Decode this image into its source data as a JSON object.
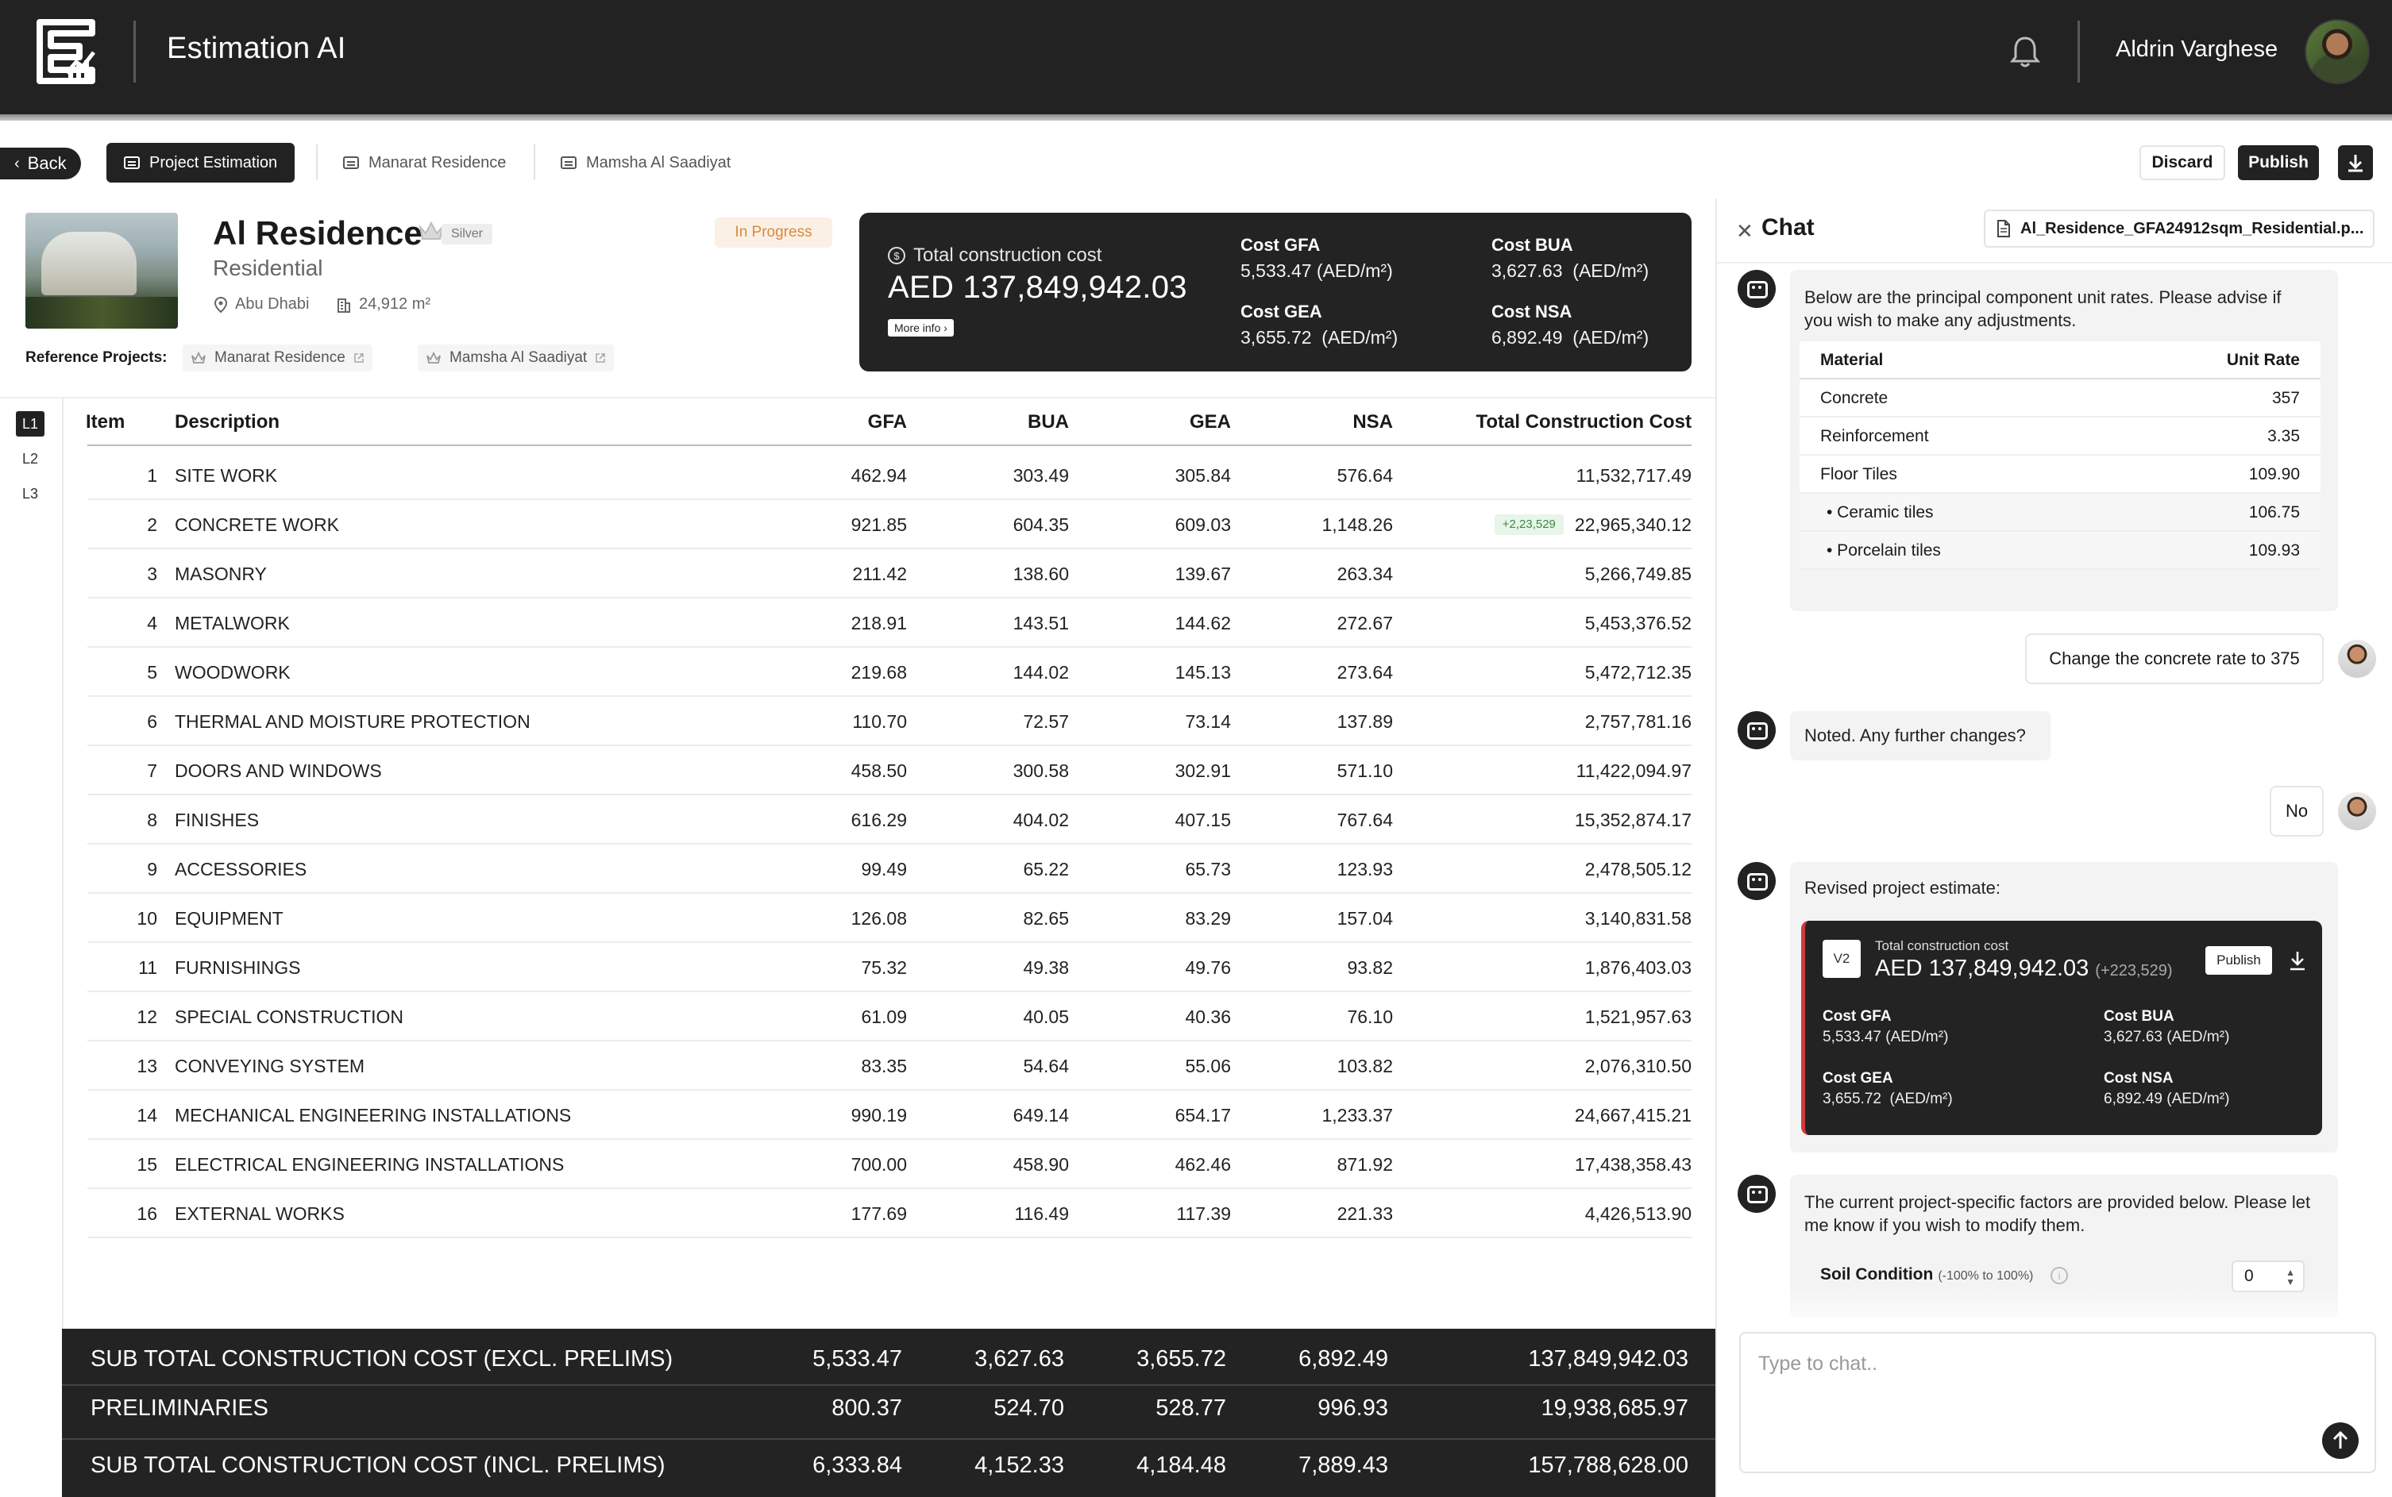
{
  "app": {
    "title": "Estimation AI",
    "user_name": "Aldrin Varghese"
  },
  "toolbar": {
    "back_label": "Back",
    "tabs": [
      {
        "label": "Project Estimation",
        "active": true
      },
      {
        "label": "Manarat Residence",
        "active": false
      },
      {
        "label": "Mamsha Al Saadiyat",
        "active": false
      }
    ],
    "discard_label": "Discard",
    "publish_label": "Publish"
  },
  "project": {
    "name": "Al Residence",
    "tier": "Silver",
    "type": "Residential",
    "location": "Abu Dhabi",
    "area": "24,912 m²",
    "status": "In Progress",
    "reference_label": "Reference Projects:",
    "references": [
      "Manarat Residence",
      "Mamsha Al Saadiyat"
    ]
  },
  "cost_summary": {
    "label": "Total construction cost",
    "total": "AED 137,849,942.03",
    "more_info": "More info ›",
    "gfa_label": "Cost GFA",
    "gfa_value": "5,533.47 (AED/m²)",
    "bua_label": "Cost BUA",
    "bua_value": "3,627.63  (AED/m²)",
    "gea_label": "Cost GEA",
    "gea_value": "3,655.72  (AED/m²)",
    "nsa_label": "Cost NSA",
    "nsa_value": "6,892.49  (AED/m²)"
  },
  "levels": [
    "L1",
    "L2",
    "L3"
  ],
  "table": {
    "headers": {
      "item": "Item",
      "description": "Description",
      "gfa": "GFA",
      "bua": "BUA",
      "gea": "GEA",
      "nsa": "NSA",
      "total": "Total Construction Cost"
    },
    "rows": [
      {
        "item": "1",
        "description": "SITE WORK",
        "gfa": "462.94",
        "bua": "303.49",
        "gea": "305.84",
        "nsa": "576.64",
        "total": "11,532,717.49",
        "delta": ""
      },
      {
        "item": "2",
        "description": "CONCRETE WORK",
        "gfa": "921.85",
        "bua": "604.35",
        "gea": "609.03",
        "nsa": "1,148.26",
        "total": "22,965,340.12",
        "delta": "+2,23,529"
      },
      {
        "item": "3",
        "description": "MASONRY",
        "gfa": "211.42",
        "bua": "138.60",
        "gea": "139.67",
        "nsa": "263.34",
        "total": "5,266,749.85",
        "delta": ""
      },
      {
        "item": "4",
        "description": "METALWORK",
        "gfa": "218.91",
        "bua": "143.51",
        "gea": "144.62",
        "nsa": "272.67",
        "total": "5,453,376.52",
        "delta": ""
      },
      {
        "item": "5",
        "description": "WOODWORK",
        "gfa": "219.68",
        "bua": "144.02",
        "gea": "145.13",
        "nsa": "273.64",
        "total": "5,472,712.35",
        "delta": ""
      },
      {
        "item": "6",
        "description": "THERMAL AND MOISTURE PROTECTION",
        "gfa": "110.70",
        "bua": "72.57",
        "gea": "73.14",
        "nsa": "137.89",
        "total": "2,757,781.16",
        "delta": ""
      },
      {
        "item": "7",
        "description": "DOORS AND WINDOWS",
        "gfa": "458.50",
        "bua": "300.58",
        "gea": "302.91",
        "nsa": "571.10",
        "total": "11,422,094.97",
        "delta": ""
      },
      {
        "item": "8",
        "description": "FINISHES",
        "gfa": "616.29",
        "bua": "404.02",
        "gea": "407.15",
        "nsa": "767.64",
        "total": "15,352,874.17",
        "delta": ""
      },
      {
        "item": "9",
        "description": "ACCESSORIES",
        "gfa": "99.49",
        "bua": "65.22",
        "gea": "65.73",
        "nsa": "123.93",
        "total": "2,478,505.12",
        "delta": ""
      },
      {
        "item": "10",
        "description": "EQUIPMENT",
        "gfa": "126.08",
        "bua": "82.65",
        "gea": "83.29",
        "nsa": "157.04",
        "total": "3,140,831.58",
        "delta": ""
      },
      {
        "item": "11",
        "description": "FURNISHINGS",
        "gfa": "75.32",
        "bua": "49.38",
        "gea": "49.76",
        "nsa": "93.82",
        "total": "1,876,403.03",
        "delta": ""
      },
      {
        "item": "12",
        "description": "SPECIAL CONSTRUCTION",
        "gfa": "61.09",
        "bua": "40.05",
        "gea": "40.36",
        "nsa": "76.10",
        "total": "1,521,957.63",
        "delta": ""
      },
      {
        "item": "13",
        "description": "CONVEYING SYSTEM",
        "gfa": "83.35",
        "bua": "54.64",
        "gea": "55.06",
        "nsa": "103.82",
        "total": "2,076,310.50",
        "delta": ""
      },
      {
        "item": "14",
        "description": "MECHANICAL ENGINEERING INSTALLATIONS",
        "gfa": "990.19",
        "bua": "649.14",
        "gea": "654.17",
        "nsa": "1,233.37",
        "total": "24,667,415.21",
        "delta": ""
      },
      {
        "item": "15",
        "description": "ELECTRICAL ENGINEERING INSTALLATIONS",
        "gfa": "700.00",
        "bua": "458.90",
        "gea": "462.46",
        "nsa": "871.92",
        "total": "17,438,358.43",
        "delta": ""
      },
      {
        "item": "16",
        "description": "EXTERNAL WORKS",
        "gfa": "177.69",
        "bua": "116.49",
        "gea": "117.39",
        "nsa": "221.33",
        "total": "4,426,513.90",
        "delta": ""
      }
    ],
    "totals": [
      {
        "label": "SUB TOTAL CONSTRUCTION COST (EXCL. PRELIMS)",
        "gfa": "5,533.47",
        "bua": "3,627.63",
        "gea": "3,655.72",
        "nsa": "6,892.49",
        "total": "137,849,942.03"
      },
      {
        "label": "PRELIMINARIES",
        "gfa": "800.37",
        "bua": "524.70",
        "gea": "528.77",
        "nsa": "996.93",
        "total": "19,938,685.97"
      },
      {
        "label": "SUB TOTAL CONSTRUCTION COST (INCL. PRELIMS)",
        "gfa": "6,333.84",
        "bua": "4,152.33",
        "gea": "4,184.48",
        "nsa": "7,889.43",
        "total": "157,788,628.00"
      }
    ]
  },
  "chat": {
    "title": "Chat",
    "file_name": "Al_Residence_GFA24912sqm_Residential.p...",
    "msg1": "Below are the principal component unit rates. Please advise if you wish to make any adjustments.",
    "material_header": "Material",
    "rate_header": "Unit Rate",
    "materials": [
      {
        "name": "Concrete",
        "rate": "357"
      },
      {
        "name": "Reinforcement",
        "rate": "3.35"
      },
      {
        "name": "Floor Tiles",
        "rate": "109.90"
      },
      {
        "name": "•  Ceramic tiles",
        "rate": "106.75"
      },
      {
        "name": "•  Porcelain tiles",
        "rate": "109.93"
      }
    ],
    "user1": "Change the concrete rate to 375",
    "bot2": "Noted. Any further changes?",
    "user2": "No",
    "bot3": "Revised project estimate:",
    "revised": {
      "version": "V2",
      "label": "Total construction cost",
      "total": "AED 137,849,942.03",
      "delta": "(+223,529)",
      "publish": "Publish",
      "gfa_label": "Cost GFA",
      "gfa_value": "5,533.47 (AED/m²)",
      "bua_label": "Cost BUA",
      "bua_value": "3,627.63 (AED/m²)",
      "gea_label": "Cost GEA",
      "gea_value": "3,655.72  (AED/m²)",
      "nsa_label": "Cost NSA",
      "nsa_value": "6,892.49 (AED/m²)"
    },
    "bot4": "The current project-specific factors are provided below. Please let me know if you wish to modify them.",
    "soil_label": "Soil Condition",
    "soil_range": "(-100% to 100%)",
    "soil_value": "0",
    "input_placeholder": "Type to chat.."
  },
  "colors": {
    "header_bg": "#222222",
    "accent_dark": "#232323",
    "status_orange": "#d98a3a",
    "delta_green": "#3a8a3e",
    "revised_border": "#d03a3a"
  }
}
